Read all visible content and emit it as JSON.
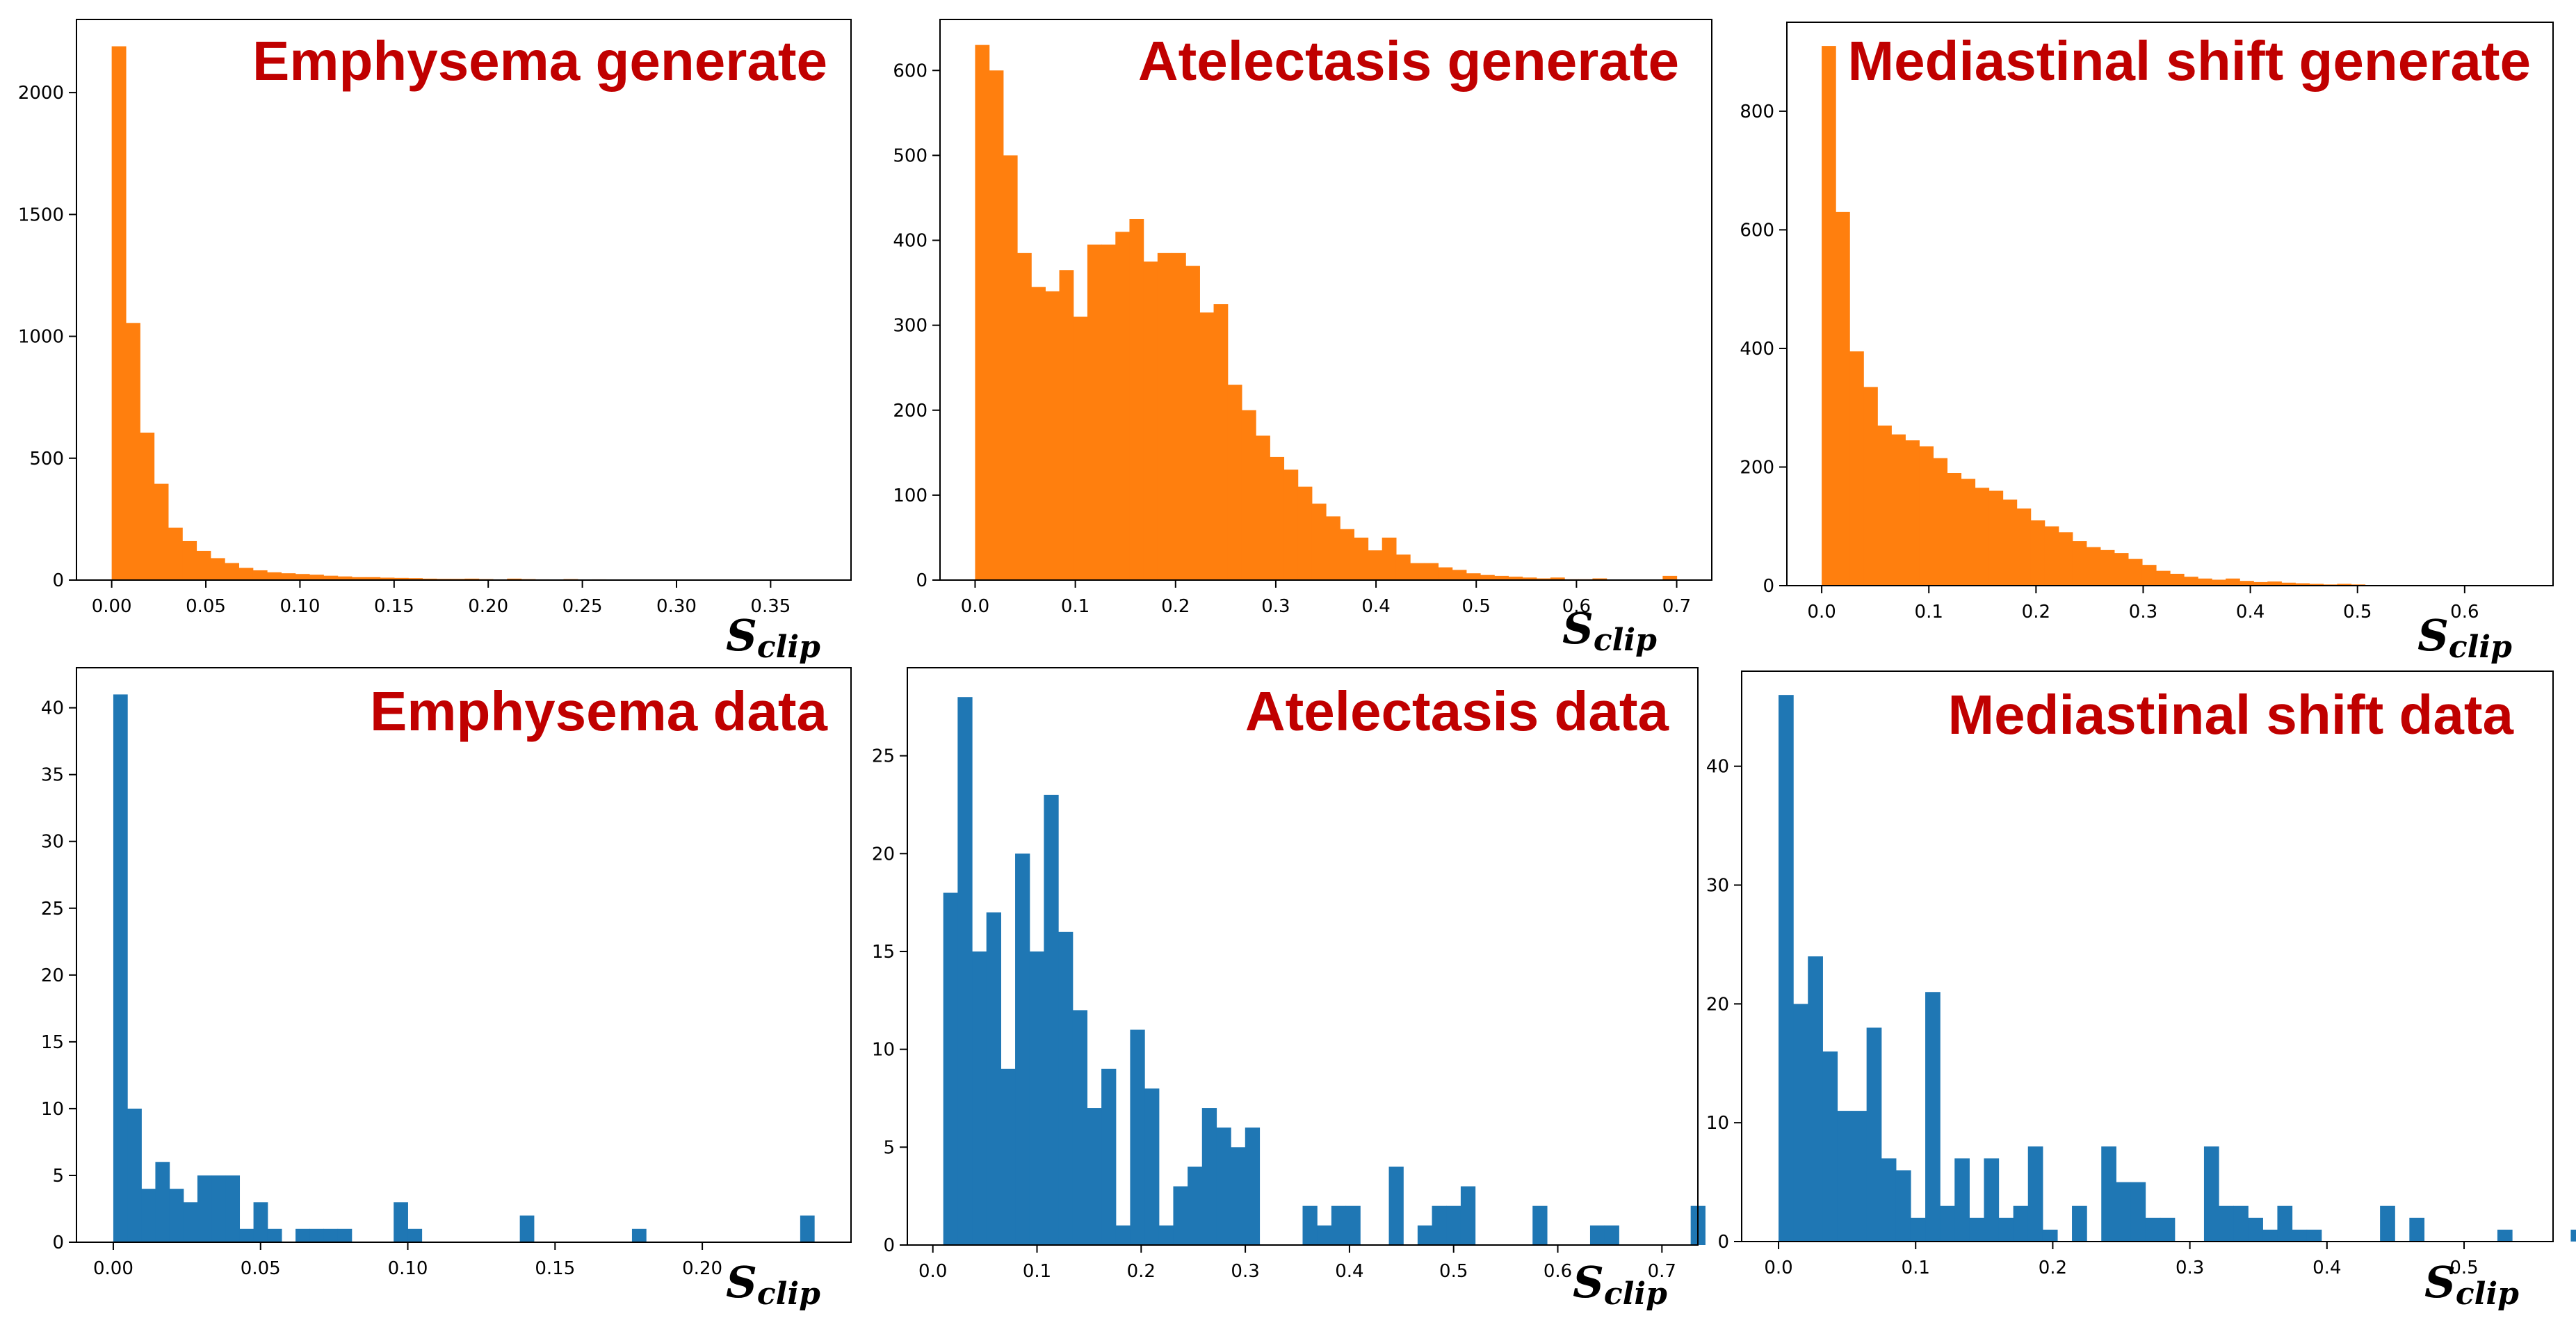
{
  "colors": {
    "generate": "#ff7f0e",
    "data": "#1f77b4",
    "title": "#c00000"
  },
  "xlabel_main": "S",
  "xlabel_sub": "clip",
  "chart_data": [
    {
      "type": "histogram",
      "title": "Emphysema generate",
      "series_color": "generate",
      "xlim": [
        -0.0187,
        0.3927
      ],
      "ylim": [
        0,
        2300
      ],
      "xticks": [
        0.0,
        0.05,
        0.1,
        0.15,
        0.2,
        0.25,
        0.3,
        0.35
      ],
      "xtick_labels": [
        "0.00",
        "0.05",
        "0.10",
        "0.15",
        "0.20",
        "0.25",
        "0.30",
        "0.35"
      ],
      "yticks": [
        0,
        500,
        1000,
        1500,
        2000
      ],
      "ytick_labels": [
        "0",
        "500",
        "1000",
        "1500",
        "2000"
      ],
      "bin_start": 0.0,
      "bin_width": 0.0075,
      "values": [
        2190,
        1055,
        605,
        395,
        215,
        160,
        120,
        90,
        70,
        50,
        40,
        32,
        28,
        25,
        22,
        18,
        15,
        12,
        12,
        10,
        9,
        8,
        6,
        5,
        5,
        6,
        4,
        3,
        6,
        4,
        3,
        2,
        4,
        2,
        3,
        2,
        1,
        1,
        1,
        1,
        0,
        0,
        0,
        0,
        1,
        0,
        0,
        0,
        0,
        1
      ]
    },
    {
      "type": "histogram",
      "title": "Atelectasis generate",
      "series_color": "generate",
      "xlim": [
        -0.035,
        0.735
      ],
      "ylim": [
        0,
        660
      ],
      "xticks": [
        0.0,
        0.1,
        0.2,
        0.3,
        0.4,
        0.5,
        0.6,
        0.7
      ],
      "xtick_labels": [
        "0.0",
        "0.1",
        "0.2",
        "0.3",
        "0.4",
        "0.5",
        "0.6",
        "0.7"
      ],
      "yticks": [
        0,
        100,
        200,
        300,
        400,
        500,
        600
      ],
      "ytick_labels": [
        "0",
        "100",
        "200",
        "300",
        "400",
        "500",
        "600"
      ],
      "bin_start": 0.0,
      "bin_width": 0.014,
      "values": [
        630,
        600,
        500,
        385,
        345,
        340,
        365,
        310,
        395,
        395,
        410,
        425,
        375,
        385,
        385,
        370,
        315,
        325,
        230,
        200,
        170,
        145,
        130,
        110,
        90,
        75,
        60,
        50,
        35,
        50,
        30,
        20,
        20,
        15,
        12,
        8,
        6,
        5,
        4,
        3,
        2,
        3,
        1,
        1,
        2,
        0,
        0,
        0,
        0,
        5
      ]
    },
    {
      "type": "histogram",
      "title": "Mediastinal shift generate",
      "series_color": "generate",
      "xlim": [
        -0.0325,
        0.6825
      ],
      "ylim": [
        0,
        950
      ],
      "xticks": [
        0.0,
        0.1,
        0.2,
        0.3,
        0.4,
        0.5,
        0.6
      ],
      "xtick_labels": [
        "0.0",
        "0.1",
        "0.2",
        "0.3",
        "0.4",
        "0.5",
        "0.6"
      ],
      "yticks": [
        0,
        200,
        400,
        600,
        800
      ],
      "ytick_labels": [
        "0",
        "200",
        "400",
        "600",
        "800"
      ],
      "bin_start": 0.0,
      "bin_width": 0.013,
      "values": [
        910,
        630,
        395,
        335,
        270,
        255,
        245,
        235,
        215,
        190,
        180,
        165,
        160,
        145,
        130,
        110,
        100,
        90,
        75,
        65,
        60,
        55,
        45,
        35,
        25,
        20,
        15,
        12,
        10,
        12,
        8,
        6,
        7,
        5,
        4,
        3,
        2,
        3,
        2,
        1,
        1,
        1,
        0,
        0,
        0,
        0,
        0,
        0,
        0,
        1
      ]
    },
    {
      "type": "histogram",
      "title": "Emphysema data",
      "series_color": "data",
      "xlim": [
        -0.0125,
        0.2505
      ],
      "ylim": [
        0,
        43
      ],
      "xticks": [
        0.0,
        0.05,
        0.1,
        0.15,
        0.2
      ],
      "xtick_labels": [
        "0.00",
        "0.05",
        "0.10",
        "0.15",
        "0.20"
      ],
      "yticks": [
        0,
        5,
        10,
        15,
        20,
        25,
        30,
        35,
        40
      ],
      "ytick_labels": [
        "0",
        "5",
        "10",
        "15",
        "20",
        "25",
        "30",
        "35",
        "40"
      ],
      "bin_start": 0.0,
      "bin_width": 0.00476,
      "values": [
        41,
        10,
        4,
        6,
        4,
        3,
        5,
        5,
        5,
        1,
        3,
        1,
        0,
        1,
        1,
        1,
        1,
        0,
        0,
        0,
        3,
        1,
        0,
        0,
        0,
        0,
        0,
        0,
        0,
        2,
        0,
        0,
        0,
        0,
        0,
        0,
        0,
        1,
        0,
        0,
        0,
        0,
        0,
        0,
        0,
        0,
        0,
        0,
        0,
        2
      ]
    },
    {
      "type": "histogram",
      "title": "Atelectasis data",
      "series_color": "data",
      "xlim": [
        -0.0245,
        0.7345
      ],
      "ylim": [
        0,
        29.5
      ],
      "xticks": [
        0.0,
        0.1,
        0.2,
        0.3,
        0.4,
        0.5,
        0.6,
        0.7
      ],
      "xtick_labels": [
        "0.0",
        "0.1",
        "0.2",
        "0.3",
        "0.4",
        "0.5",
        "0.6",
        "0.7"
      ],
      "yticks": [
        0,
        5,
        10,
        15,
        20,
        25
      ],
      "ytick_labels": [
        "0",
        "5",
        "10",
        "15",
        "20",
        "25"
      ],
      "bin_start": 0.01,
      "bin_width": 0.0138,
      "values": [
        18,
        28,
        15,
        17,
        9,
        20,
        15,
        23,
        16,
        12,
        7,
        9,
        1,
        11,
        8,
        1,
        3,
        4,
        7,
        6,
        5,
        6,
        0,
        0,
        0,
        2,
        1,
        2,
        2,
        0,
        0,
        4,
        0,
        1,
        2,
        2,
        3,
        0,
        0,
        0,
        0,
        2,
        0,
        0,
        0,
        1,
        1,
        0,
        0,
        0,
        0,
        0,
        2
      ]
    },
    {
      "type": "histogram",
      "title": "Mediastinal shift data",
      "series_color": "data",
      "xlim": [
        -0.0269,
        0.5649
      ],
      "ylim": [
        0,
        48
      ],
      "xticks": [
        0.0,
        0.1,
        0.2,
        0.3,
        0.4,
        0.5
      ],
      "xtick_labels": [
        "0.0",
        "0.1",
        "0.2",
        "0.3",
        "0.4",
        "0.5"
      ],
      "yticks": [
        0,
        10,
        20,
        30,
        40
      ],
      "ytick_labels": [
        "0",
        "10",
        "20",
        "30",
        "40"
      ],
      "bin_start": 0.0,
      "bin_width": 0.0107,
      "values": [
        46,
        20,
        24,
        16,
        11,
        11,
        18,
        7,
        6,
        2,
        21,
        3,
        7,
        2,
        7,
        2,
        3,
        8,
        1,
        0,
        3,
        0,
        8,
        5,
        5,
        2,
        2,
        0,
        0,
        8,
        3,
        3,
        2,
        1,
        3,
        1,
        1,
        0,
        0,
        0,
        0,
        3,
        0,
        2,
        0,
        0,
        0,
        0,
        0,
        1,
        0,
        0,
        0,
        0,
        1
      ]
    }
  ]
}
